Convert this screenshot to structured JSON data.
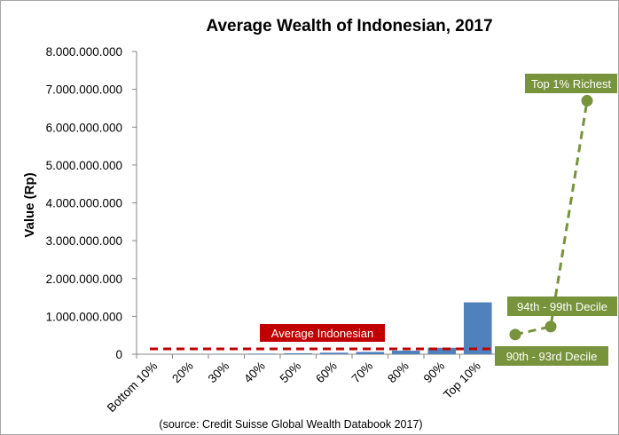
{
  "chart_data": {
    "type": "bar",
    "title": "Average Wealth of Indonesian, 2017",
    "ylabel": "Value (Rp)",
    "xlabel": "",
    "source": "(source: Credit Suisse Global Wealth Databook 2017)",
    "ylim": [
      0,
      8000000000
    ],
    "yticks": [
      "0",
      "1.000.000.000",
      "2.000.000.000",
      "3.000.000.000",
      "4.000.000.000",
      "5.000.000.000",
      "6.000.000.000",
      "7.000.000.000",
      "8.000.000.000"
    ],
    "ytick_values": [
      0,
      1000000000,
      2000000000,
      3000000000,
      4000000000,
      5000000000,
      6000000000,
      7000000000,
      8000000000
    ],
    "categories": [
      "Bottom 10%",
      "20%",
      "30%",
      "40%",
      "50%",
      "60%",
      "70%",
      "80%",
      "90%",
      "Top 10%"
    ],
    "values": [
      0,
      3000000,
      8000000,
      15000000,
      25000000,
      40000000,
      60000000,
      95000000,
      170000000,
      1370000000
    ],
    "average": {
      "label": "Average Indonesian",
      "value": 140000000
    },
    "top_breakdown": {
      "points": [
        {
          "label": "90th - 93rd Decile",
          "value": 520000000
        },
        {
          "label": "94th - 99th Decile",
          "value": 730000000
        },
        {
          "label": "Top 1% Richest",
          "value": 6700000000
        }
      ]
    },
    "grid": false,
    "legend": "none",
    "colors": {
      "bar": "#4f81bd",
      "average": "#c00000",
      "top": "#77933c",
      "annotation_bg_avg": "#c00000",
      "annotation_bg_top": "#77933c"
    }
  }
}
